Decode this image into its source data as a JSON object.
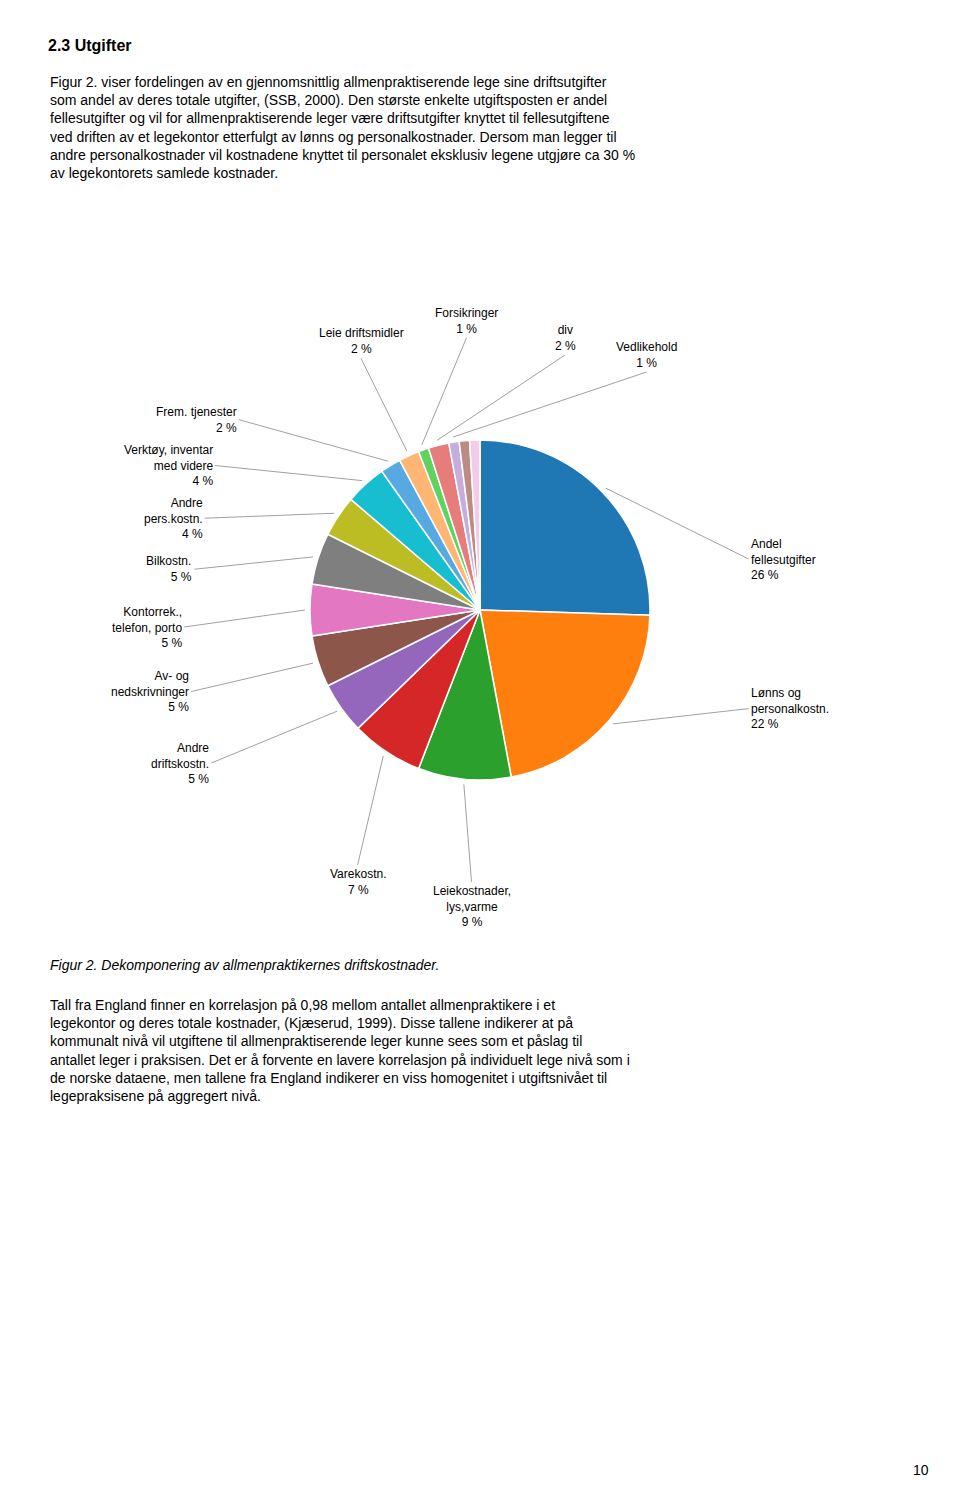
{
  "chart_data": {
    "type": "pie",
    "title": "2.3 Utgifter",
    "subtitle": "Figur 2. viser fordelingen av en gjennomsnittlig allmenpraktiserende lege sine driftsutgifter\nsom andel av deres totale utgifter, (SSB, 2000). Den største enkelte utgiftsposten er andel\nfellesutgifter og vil for allmenpraktiserende leger være driftsutgifter knyttet til fellesutgiftene\nved driften av et legekontor etterfulgt av lønns og personalkostnader. Dersom man legger til\nandre personalkostnader vil kostnadene knyttet til personalet eksklusiv legene utgjøre ca 30 %\nav legekontorets samlede kostnader.",
    "categories": [
      "Andel\nfellesutgifter",
      "Lønns og\npersonalkostn.",
      "Leiekostnader,\nlys,varme",
      "Varekostn.",
      "Andre\ndriftskostn.",
      "Av- og\nnedskrivninger",
      "Kontorrek.,\ntelefon, porto",
      "Bilkostn.",
      "Andre\npers.kostn.",
      "Verktøy, inventar\nmed videre",
      "Frem. tjenester",
      "Leie driftsmidler",
      "Forsikringer",
      "div",
      "Vedlikehold",
      null,
      null
    ],
    "values": [
      26,
      22,
      9,
      7,
      5,
      5,
      5,
      5,
      4,
      4,
      2,
      2,
      1,
      2,
      1,
      1,
      1
    ],
    "value_labels": [
      "26 %",
      "22 %",
      "9 %",
      "7 %",
      "5 %",
      "5 %",
      "5 %",
      "5 %",
      "4 %",
      "4 %",
      "2 %",
      "2 %",
      "1 %",
      "2 %",
      "1 %",
      null,
      null
    ],
    "data_labels": true,
    "annotations": [
      "Figur 2. Dekomponering av allmenpraktikernes driftskostnader.",
      "Tall fra England finner en korrelasjon på 0,98 mellom antallet allmenpraktikere i et\nlegekontor og deres totale kostnader, (Kjæserud, 1999). Disse tallene indikerer at på\nkommunalt nivå vil utgiftene til allmenpraktiserende leger kunne sees som et påslag til\nantallet leger i praksisen. Det er å forvente en lavere korrelasjon på individuelt lege nivå som i\nde norske dataene, men tallene fra England indikerer en viss homogenitet i utgiftsnivået til\nlegepraksisene på aggregert nivå.",
      "10"
    ]
  }
}
